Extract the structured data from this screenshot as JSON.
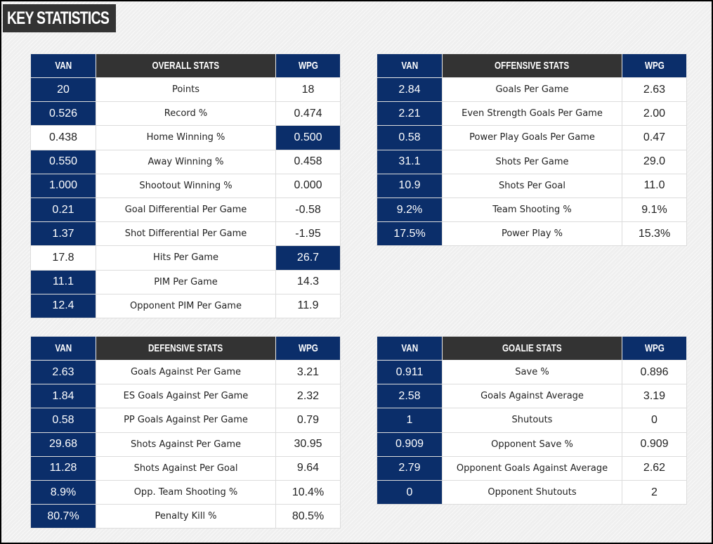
{
  "page": {
    "title": "KEY STATISTICS",
    "colors": {
      "navy": "#0b2e6a",
      "dark": "#333333",
      "white": "#ffffff"
    }
  },
  "tables": {
    "overall": {
      "left_team": "VAN",
      "category": "OVERALL STATS",
      "right_team": "WPG",
      "rows": [
        {
          "van": "20",
          "label": "Points",
          "wpg": "18",
          "leader": "van"
        },
        {
          "van": "0.526",
          "label": "Record %",
          "wpg": "0.474",
          "leader": "van"
        },
        {
          "van": "0.438",
          "label": "Home Winning %",
          "wpg": "0.500",
          "leader": "wpg"
        },
        {
          "van": "0.550",
          "label": "Away Winning %",
          "wpg": "0.458",
          "leader": "van"
        },
        {
          "van": "1.000",
          "label": "Shootout Winning %",
          "wpg": "0.000",
          "leader": "van"
        },
        {
          "van": "0.21",
          "label": "Goal Differential Per Game",
          "wpg": "-0.58",
          "leader": "van"
        },
        {
          "van": "1.37",
          "label": "Shot Differential Per Game",
          "wpg": "-1.95",
          "leader": "van"
        },
        {
          "van": "17.8",
          "label": "Hits Per Game",
          "wpg": "26.7",
          "leader": "wpg"
        },
        {
          "van": "11.1",
          "label": "PIM Per Game",
          "wpg": "14.3",
          "leader": "van"
        },
        {
          "van": "12.4",
          "label": "Opponent PIM Per Game",
          "wpg": "11.9",
          "leader": "van"
        }
      ]
    },
    "offensive": {
      "left_team": "VAN",
      "category": "OFFENSIVE STATS",
      "right_team": "WPG",
      "rows": [
        {
          "van": "2.84",
          "label": "Goals Per Game",
          "wpg": "2.63",
          "leader": "van"
        },
        {
          "van": "2.21",
          "label": "Even Strength Goals Per Game",
          "wpg": "2.00",
          "leader": "van"
        },
        {
          "van": "0.58",
          "label": "Power Play Goals Per Game",
          "wpg": "0.47",
          "leader": "van"
        },
        {
          "van": "31.1",
          "label": "Shots Per Game",
          "wpg": "29.0",
          "leader": "van"
        },
        {
          "van": "10.9",
          "label": "Shots Per Goal",
          "wpg": "11.0",
          "leader": "van"
        },
        {
          "van": "9.2%",
          "label": "Team Shooting %",
          "wpg": "9.1%",
          "leader": "van"
        },
        {
          "van": "17.5%",
          "label": "Power Play %",
          "wpg": "15.3%",
          "leader": "van"
        }
      ]
    },
    "defensive": {
      "left_team": "VAN",
      "category": "DEFENSIVE STATS",
      "right_team": "WPG",
      "rows": [
        {
          "van": "2.63",
          "label": "Goals Against Per Game",
          "wpg": "3.21",
          "leader": "van"
        },
        {
          "van": "1.84",
          "label": "ES Goals Against Per Game",
          "wpg": "2.32",
          "leader": "van"
        },
        {
          "van": "0.58",
          "label": "PP Goals Against Per Game",
          "wpg": "0.79",
          "leader": "van"
        },
        {
          "van": "29.68",
          "label": "Shots Against Per Game",
          "wpg": "30.95",
          "leader": "van"
        },
        {
          "van": "11.28",
          "label": "Shots Against Per Goal",
          "wpg": "9.64",
          "leader": "van"
        },
        {
          "van": "8.9%",
          "label": "Opp. Team Shooting %",
          "wpg": "10.4%",
          "leader": "van"
        },
        {
          "van": "80.7%",
          "label": "Penalty Kill %",
          "wpg": "80.5%",
          "leader": "van"
        }
      ]
    },
    "goalie": {
      "left_team": "VAN",
      "category": "GOALIE STATS",
      "right_team": "WPG",
      "rows": [
        {
          "van": "0.911",
          "label": "Save %",
          "wpg": "0.896",
          "leader": "van"
        },
        {
          "van": "2.58",
          "label": "Goals Against Average",
          "wpg": "3.19",
          "leader": "van"
        },
        {
          "van": "1",
          "label": "Shutouts",
          "wpg": "0",
          "leader": "van"
        },
        {
          "van": "0.909",
          "label": "Opponent Save %",
          "wpg": "0.909",
          "leader": "van"
        },
        {
          "van": "2.79",
          "label": "Opponent Goals Against Average",
          "wpg": "2.62",
          "leader": "van"
        },
        {
          "van": "0",
          "label": "Opponent Shutouts",
          "wpg": "2",
          "leader": "van"
        }
      ]
    }
  }
}
